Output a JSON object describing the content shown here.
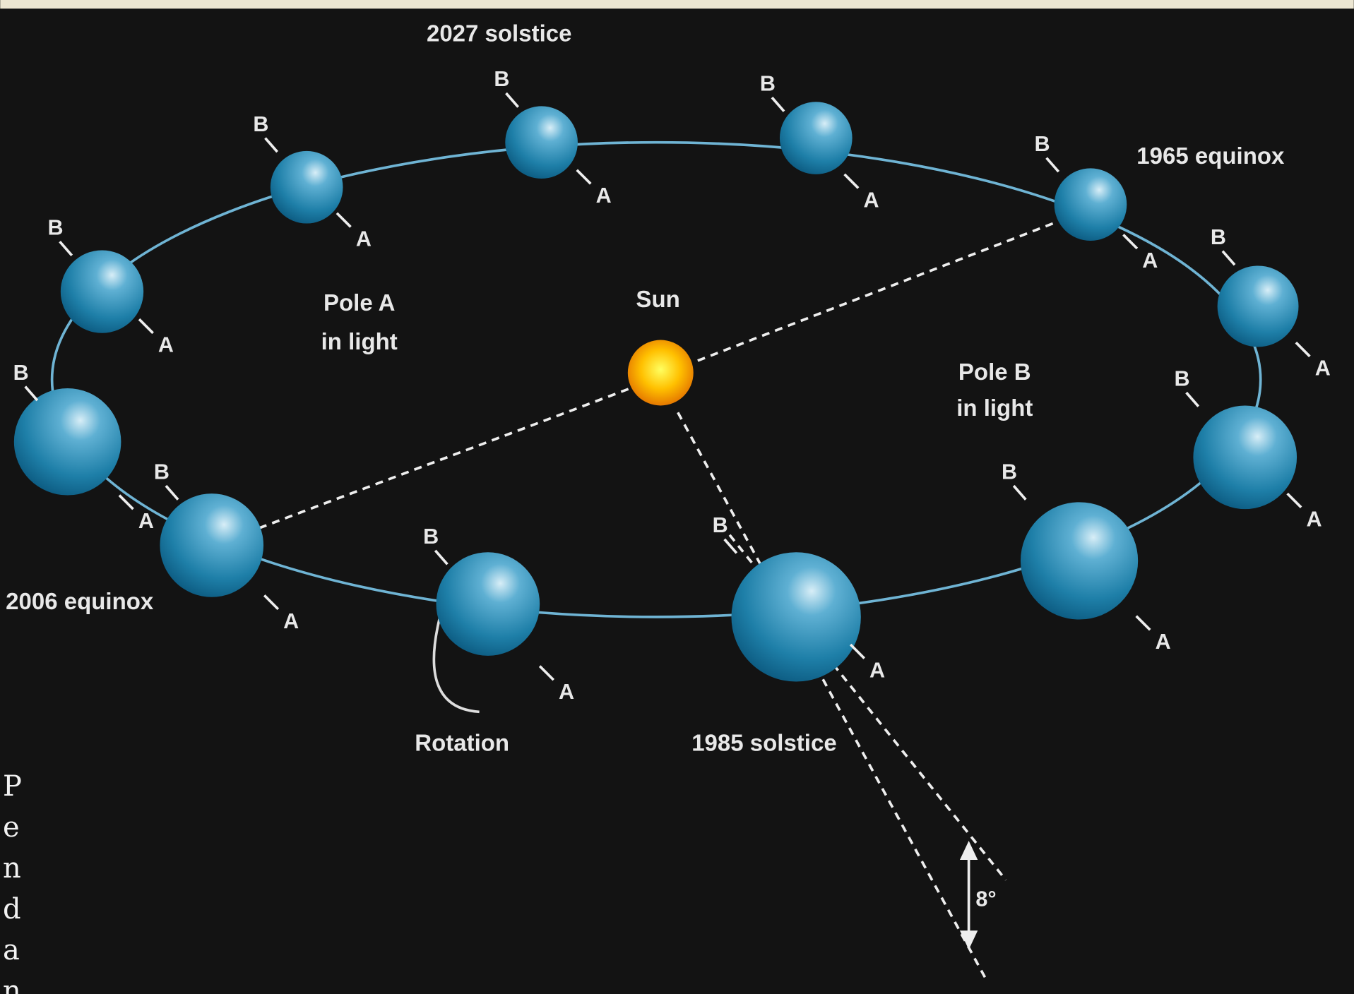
{
  "labels": {
    "solstice_2027": "2027 solstice",
    "equinox_1965": "1965 equinox",
    "equinox_2006": "2006 equinox",
    "solstice_1985": "1985 solstice",
    "sun": "Sun",
    "pole_a_light": [
      "Pole A",
      "in light"
    ],
    "pole_b_light": [
      "Pole B",
      "in light"
    ],
    "rotation": "Rotation",
    "angle": "8°"
  },
  "pole_labels": {
    "north": "B",
    "south": "A"
  },
  "side_text": "Pendan"
}
